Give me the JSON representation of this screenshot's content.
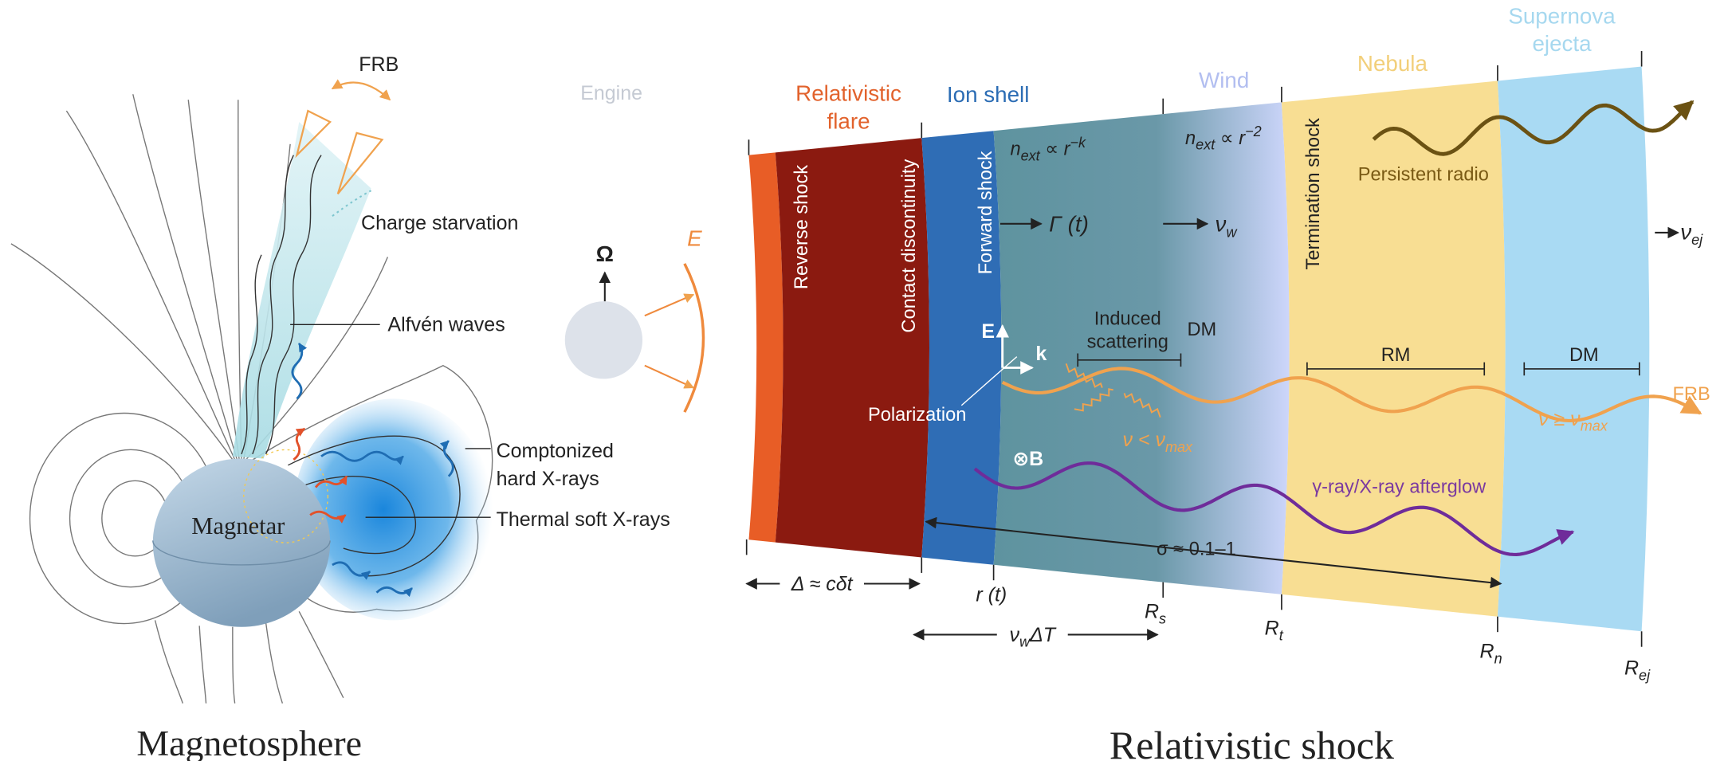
{
  "magnetosphere": {
    "title": "Magnetosphere",
    "frb": "FRB",
    "charge_starvation": "Charge starvation",
    "alfven_waves": "Alfvén waves",
    "comptonized": [
      "Comptonized",
      "hard X-rays"
    ],
    "thermal": "Thermal soft X-rays",
    "magnetar": "Magnetar"
  },
  "engine": {
    "label": "Engine",
    "omega": "Ω",
    "energy": "E"
  },
  "shock": {
    "title": "Relativistic shock",
    "regions": {
      "flare": [
        "Relativistic",
        "flare"
      ],
      "ion_shell": "Ion shell",
      "wind": "Wind",
      "nebula": "Nebula",
      "ejecta": [
        "Supernova",
        "ejecta"
      ]
    },
    "boundaries": {
      "reverse": "Reverse shock",
      "contact": "Contact discontinuity",
      "forward": "Forward shock",
      "termination": "Termination shock"
    },
    "density_ion": {
      "symbol": "n",
      "sub": "ext",
      "relation": " ∝ r",
      "sup": "−k"
    },
    "density_wind": {
      "symbol": "n",
      "sub": "ext",
      "relation": " ∝ r",
      "sup": "−2"
    },
    "lorentz": "Γ (t)",
    "wind_velocity": {
      "symbol": "ν",
      "sub": "w"
    },
    "ejecta_velocity": {
      "symbol": "ν",
      "sub": "ej"
    },
    "e_field": "E",
    "k_vector": "k",
    "b_field": "⊗B",
    "polarization": "Polarization",
    "induced_scattering": [
      "Induced",
      "scattering"
    ],
    "dm_wind": "DM",
    "rm": "RM",
    "dm_ejecta": "DM",
    "frb": "FRB",
    "freq_low": {
      "symbol": "ν < ν",
      "sub": "max"
    },
    "freq_high": {
      "symbol": "ν ≥ ν",
      "sub": "max"
    },
    "persistent_radio": "Persistent radio",
    "afterglow": "γ-ray/X-ray afterglow",
    "sigma": "σ ≈ 0.1–1",
    "flare_width": "Δ ≈ cδt",
    "radius": "r (t)",
    "delay": {
      "symbol": "ν",
      "sub": "w",
      "rest": "ΔT"
    },
    "radii": [
      {
        "symbol": "R",
        "sub": "s"
      },
      {
        "symbol": "R",
        "sub": "t"
      },
      {
        "symbol": "R",
        "sub": "n"
      },
      {
        "symbol": "R",
        "sub": "ej"
      }
    ]
  }
}
